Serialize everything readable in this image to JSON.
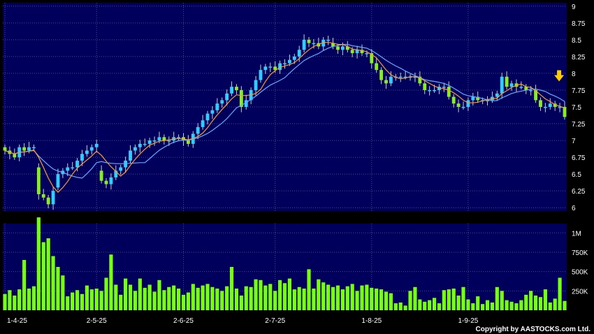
{
  "chart_data": {
    "type": "candlestick",
    "colors": {
      "background": "#000000",
      "plot_background": "#00005c",
      "grid": "#4a4a8a",
      "up_candle": "#33ccff",
      "down_candle": "#88ee22",
      "volume_bar": "#77ff11",
      "sma_short": "#ff9933",
      "sma_long": "#66aaff",
      "marker": "#ffcc00",
      "text": "#ffffff"
    },
    "price_axis": {
      "ticks": [
        "9",
        "8.75",
        "8.5",
        "8.25",
        "8",
        "7.75",
        "7.5",
        "7.25",
        "7",
        "6.75",
        "6.5",
        "6.25",
        "6"
      ],
      "ylim": [
        5.95,
        9.05
      ]
    },
    "volume_axis": {
      "ticks": [
        {
          "label": "1M",
          "value": 1000000
        },
        {
          "label": "750K",
          "value": 750000
        },
        {
          "label": "500K",
          "value": 500000
        },
        {
          "label": "250K",
          "value": 250000
        }
      ],
      "ylim": [
        0,
        1120000
      ]
    },
    "x_axis": {
      "labels": [
        {
          "label": "1-4-25",
          "index": 0
        },
        {
          "label": "2-5-25",
          "index": 19
        },
        {
          "label": "2-6-25",
          "index": 37
        },
        {
          "label": "2-7-25",
          "index": 56
        },
        {
          "label": "1-8-25",
          "index": 76
        },
        {
          "label": "1-9-25",
          "index": 96
        }
      ],
      "count": 117
    },
    "candles_close": [
      6.85,
      6.8,
      6.75,
      6.9,
      6.85,
      6.9,
      6.9,
      6.2,
      6.15,
      6.05,
      6.25,
      6.5,
      6.55,
      6.6,
      6.6,
      6.7,
      6.8,
      6.85,
      6.9,
      6.95,
      6.4,
      6.35,
      6.45,
      6.55,
      6.6,
      6.7,
      6.85,
      6.9,
      6.95,
      6.95,
      7.0,
      7.0,
      7.05,
      7.0,
      7.0,
      7.05,
      7.05,
      7.0,
      6.95,
      7.1,
      7.2,
      7.3,
      7.4,
      7.45,
      7.55,
      7.6,
      7.7,
      7.8,
      7.75,
      7.5,
      7.6,
      7.75,
      7.9,
      8.05,
      8.1,
      8.1,
      8.05,
      8.15,
      8.15,
      8.2,
      8.25,
      8.35,
      8.5,
      8.45,
      8.45,
      8.4,
      8.5,
      8.5,
      8.4,
      8.35,
      8.4,
      8.35,
      8.3,
      8.35,
      8.3,
      8.3,
      8.15,
      8.05,
      7.9,
      7.85,
      7.95,
      7.95,
      7.95,
      7.95,
      7.95,
      7.95,
      7.85,
      7.75,
      7.75,
      7.75,
      7.8,
      7.8,
      7.65,
      7.55,
      7.5,
      7.5,
      7.6,
      7.65,
      7.6,
      7.6,
      7.6,
      7.65,
      7.7,
      7.95,
      7.8,
      7.85,
      7.8,
      7.8,
      7.75,
      7.75,
      7.6,
      7.5,
      7.5,
      7.55,
      7.5,
      7.5,
      7.35
    ],
    "candles_open": [
      6.9,
      6.85,
      6.8,
      6.75,
      6.9,
      6.85,
      6.9,
      6.6,
      6.2,
      6.15,
      6.05,
      6.3,
      6.5,
      6.55,
      6.6,
      6.6,
      6.7,
      6.8,
      6.85,
      6.9,
      6.55,
      6.4,
      6.35,
      6.45,
      6.55,
      6.6,
      6.7,
      6.85,
      6.9,
      6.95,
      6.95,
      7.0,
      7.0,
      7.05,
      7.0,
      7.0,
      7.05,
      7.05,
      7.0,
      6.95,
      7.1,
      7.2,
      7.3,
      7.4,
      7.45,
      7.55,
      7.6,
      7.7,
      7.8,
      7.75,
      7.5,
      7.6,
      7.75,
      7.9,
      8.05,
      8.1,
      8.1,
      8.05,
      8.15,
      8.15,
      8.2,
      8.25,
      8.35,
      8.5,
      8.45,
      8.45,
      8.4,
      8.5,
      8.45,
      8.4,
      8.35,
      8.4,
      8.35,
      8.3,
      8.35,
      8.3,
      8.3,
      8.15,
      8.05,
      7.9,
      7.85,
      7.95,
      7.95,
      7.95,
      7.95,
      7.95,
      7.95,
      7.85,
      7.75,
      7.75,
      7.75,
      7.8,
      7.8,
      7.65,
      7.55,
      7.5,
      7.5,
      7.6,
      7.65,
      7.6,
      7.6,
      7.6,
      7.65,
      7.7,
      7.95,
      7.8,
      7.85,
      7.8,
      7.8,
      7.75,
      7.75,
      7.6,
      7.5,
      7.5,
      7.55,
      7.5,
      7.5
    ],
    "volume_k": [
      210,
      260,
      190,
      270,
      650,
      280,
      310,
      1200,
      880,
      930,
      700,
      560,
      450,
      180,
      230,
      260,
      210,
      320,
      270,
      280,
      250,
      420,
      720,
      330,
      200,
      410,
      330,
      250,
      410,
      290,
      330,
      240,
      390,
      260,
      300,
      320,
      280,
      200,
      230,
      340,
      290,
      320,
      340,
      300,
      280,
      250,
      310,
      560,
      280,
      190,
      310,
      300,
      400,
      390,
      320,
      340,
      250,
      390,
      350,
      410,
      270,
      300,
      280,
      530,
      280,
      400,
      360,
      330,
      300,
      320,
      270,
      310,
      340,
      250,
      320,
      330,
      290,
      280,
      270,
      240,
      220,
      90,
      100,
      60,
      250,
      300,
      140,
      110,
      130,
      160,
      90,
      260,
      270,
      280,
      190,
      300,
      140,
      90,
      180,
      80,
      130,
      100,
      300,
      250,
      130,
      110,
      90,
      130,
      200,
      250,
      190,
      170,
      270,
      100,
      150,
      420,
      120
    ]
  },
  "copyright": "Copyright by AASTOCKS.com Ltd."
}
